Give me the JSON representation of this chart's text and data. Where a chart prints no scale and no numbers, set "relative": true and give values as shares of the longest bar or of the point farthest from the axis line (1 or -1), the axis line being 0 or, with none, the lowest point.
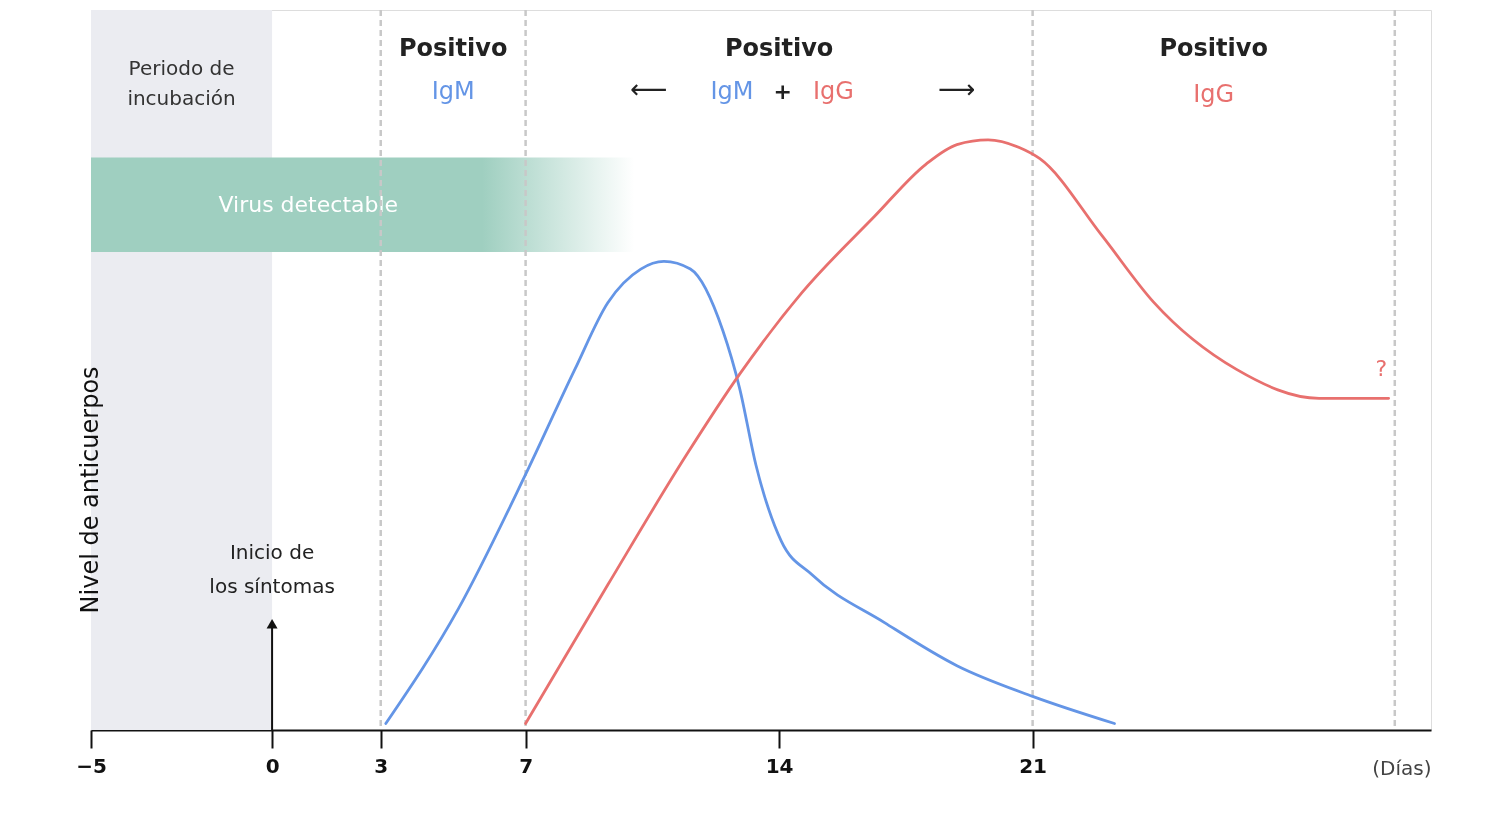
{
  "chart_data": {
    "type": "line",
    "relative": true,
    "xlabel": "(Días)",
    "ylabel": "Nivel de anticuerpos",
    "xlim": [
      -5,
      32
    ],
    "xticks": [
      -5,
      0,
      3,
      7,
      14,
      21
    ],
    "grid": false,
    "legend": false,
    "marker": "none",
    "line_style": "solid",
    "series": [
      {
        "name": "IgM",
        "color": "#6495e6",
        "x": [
          3.14,
          5.15,
          7,
          8.36,
          9.27,
          10.18,
          10.82,
          11.55,
          12.45,
          12.91,
          13.36,
          14.06,
          14.91,
          16.91,
          18.91,
          21,
          23.26
        ],
        "values": [
          0.011,
          0.206,
          0.433,
          0.611,
          0.724,
          0.781,
          0.794,
          0.781,
          0.676,
          0.579,
          0.449,
          0.32,
          0.263,
          0.182,
          0.109,
          0.057,
          0.011
        ]
      },
      {
        "name": "IgG",
        "color": "#e8706e",
        "x": [
          7,
          9.27,
          11.43,
          12.91,
          14.63,
          16.63,
          18.06,
          18.91,
          19.77,
          20.63,
          21.2,
          22.91,
          24.34,
          26.63,
          28.91,
          30.83
        ],
        "values": [
          0.011,
          0.246,
          0.465,
          0.603,
          0.741,
          0.87,
          0.959,
          0.992,
          1,
          0.987,
          0.968,
          0.838,
          0.725,
          0.611,
          0.562,
          0.562
        ]
      }
    ],
    "bands": [
      {
        "axis": "x",
        "from": -5,
        "to": 0,
        "label": "Periodo de incubación",
        "color": "#ebecf1"
      },
      {
        "axis": "x",
        "from": -5,
        "to": 10,
        "label": "Virus detectable",
        "color": "#9fcfc0"
      }
    ],
    "ref_lines": [
      {
        "axis": "x",
        "value": 3,
        "color": "#c8c8c8",
        "line_style": "dashed"
      },
      {
        "axis": "x",
        "value": 7,
        "color": "#c8c8c8",
        "line_style": "dashed"
      },
      {
        "axis": "x",
        "value": 21,
        "color": "#c8c8c8",
        "line_style": "dashed"
      },
      {
        "axis": "x",
        "value": 31,
        "color": "#c8c8c8",
        "line_style": "dashed"
      }
    ],
    "annotations": [
      "Positivo",
      "Positivo",
      "Positivo",
      "⟵",
      "+",
      "⟶",
      "Inicio de los síntomas",
      "?"
    ]
  }
}
